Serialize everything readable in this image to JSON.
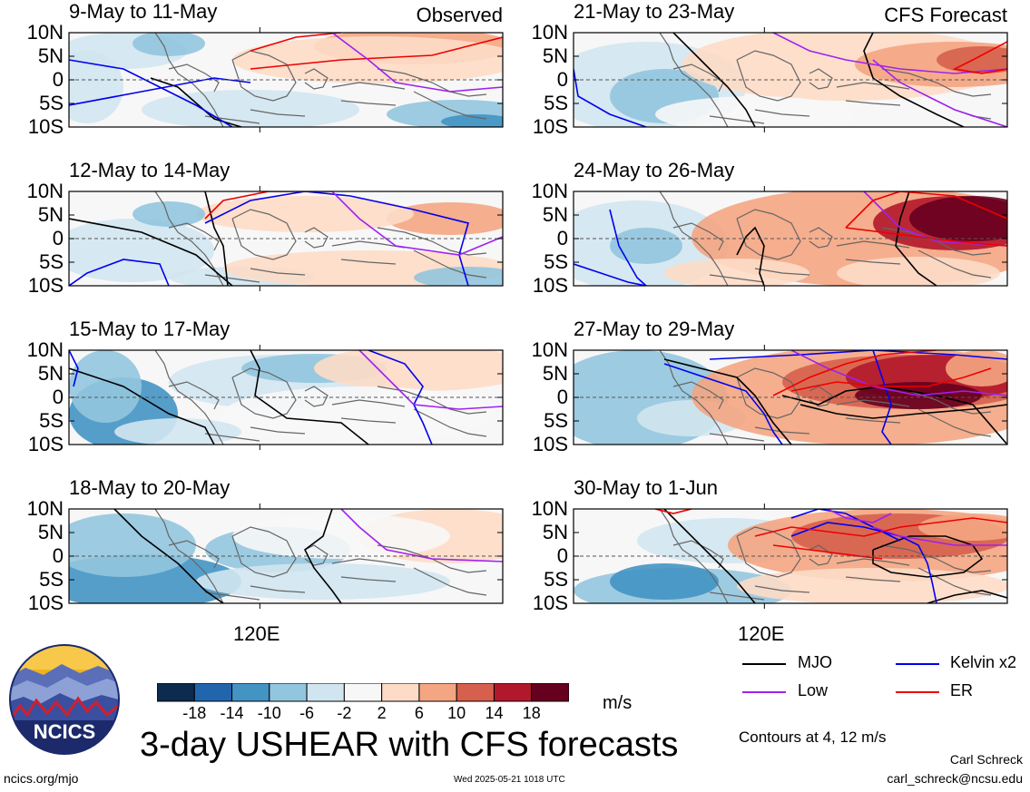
{
  "panels": [
    {
      "id": "p1",
      "title": "9-May to 11-May",
      "tag": "Observed",
      "column": "left",
      "row": 0
    },
    {
      "id": "p2",
      "title": "12-May to 14-May",
      "tag": "",
      "column": "left",
      "row": 1
    },
    {
      "id": "p3",
      "title": "15-May to 17-May",
      "tag": "",
      "column": "left",
      "row": 2
    },
    {
      "id": "p4",
      "title": "18-May to 20-May",
      "tag": "",
      "column": "left",
      "row": 3
    },
    {
      "id": "p5",
      "title": "21-May to 23-May",
      "tag": "CFS Forecast",
      "column": "right",
      "row": 0
    },
    {
      "id": "p6",
      "title": "24-May to 26-May",
      "tag": "",
      "column": "right",
      "row": 1
    },
    {
      "id": "p7",
      "title": "27-May to 29-May",
      "tag": "",
      "column": "right",
      "row": 2
    },
    {
      "id": "p8",
      "title": "30-May to 1-Jun",
      "tag": "",
      "column": "right",
      "row": 3
    }
  ],
  "y_ticks": [
    "10N",
    "5N",
    "0",
    "5S",
    "10S"
  ],
  "x_tick": "120E",
  "colorbar": {
    "labels": [
      "-18",
      "-14",
      "-10",
      "-6",
      "-2",
      "2",
      "6",
      "10",
      "14",
      "18"
    ],
    "colors": [
      "#0d2a4f",
      "#2166ac",
      "#4393c3",
      "#92c5de",
      "#d1e5f0",
      "#f7f7f7",
      "#fddbc7",
      "#f4a582",
      "#d6604d",
      "#b2182b",
      "#67001f"
    ],
    "unit": "m/s"
  },
  "main_title": "3-day USHEAR with CFS forecasts",
  "legend": [
    {
      "label": "MJO",
      "color": "#000000"
    },
    {
      "label": "Kelvin x2",
      "color": "#0000ee"
    },
    {
      "label": "Low",
      "color": "#a020f0"
    },
    {
      "label": "ER",
      "color": "#ee0000"
    }
  ],
  "contour_note": "Contours at 4, 12 m/s",
  "author": "Carl Schreck",
  "email": "carl_schreck@ncsu.edu",
  "site": "ncics.org/mjo",
  "timestamp": "Wed 2025-05-21 1018 UTC",
  "logo_text": "NCICS"
}
